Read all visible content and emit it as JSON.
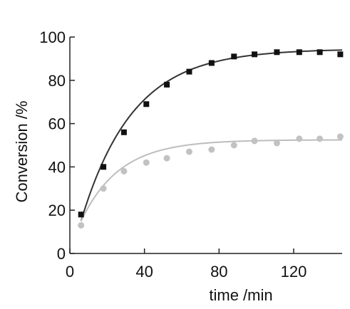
{
  "chart_data": {
    "type": "scatter",
    "title": "",
    "xlabel": "time /min",
    "ylabel": "Conversion /%",
    "xlim": [
      0,
      146
    ],
    "ylim": [
      0,
      100
    ],
    "x_ticks": [
      0,
      40,
      80,
      120
    ],
    "y_ticks": [
      0,
      20,
      40,
      60,
      80,
      100
    ],
    "grid": false,
    "legend": "none",
    "series": [
      {
        "marker": "square",
        "color": "#111111",
        "x": [
          6,
          18,
          29,
          41,
          52,
          64,
          76,
          88,
          99,
          111,
          123,
          134,
          145
        ],
        "y": [
          18,
          40,
          56,
          69,
          78,
          84,
          88,
          91,
          92,
          93,
          93,
          93,
          92
        ],
        "fit": {
          "color": "#333333",
          "start": 6,
          "y0": 15,
          "ymax": 94.5,
          "k": 0.036
        }
      },
      {
        "marker": "circle",
        "color": "#c2c2c2",
        "x": [
          6,
          18,
          29,
          41,
          52,
          64,
          76,
          88,
          99,
          111,
          123,
          134,
          145
        ],
        "y": [
          13,
          30,
          38,
          42,
          44,
          47,
          48,
          50,
          52,
          51,
          53,
          53,
          54
        ],
        "fit": {
          "color": "#bdbdbd",
          "start": 6,
          "y0": 15,
          "ymax": 52.5,
          "k": 0.048
        }
      }
    ]
  }
}
